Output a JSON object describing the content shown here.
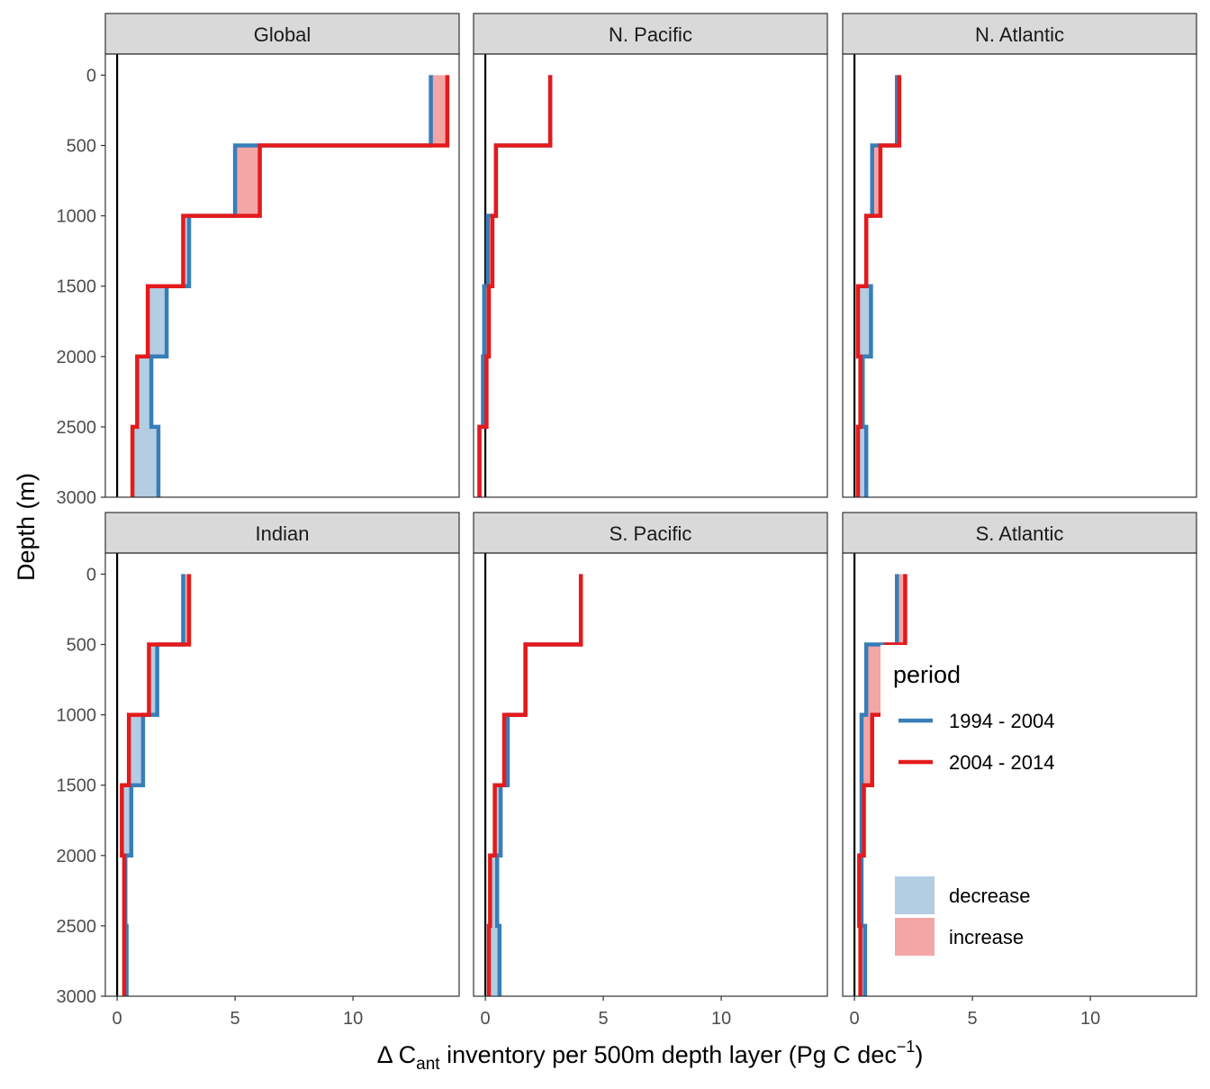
{
  "chart_data": {
    "type": "step",
    "xlabel": {
      "prefix": "Δ C",
      "subscript": "ant",
      "middle": " inventory per 500m depth layer (Pg C dec",
      "superscript": "−1",
      "suffix": ")"
    },
    "ylabel": "Depth (m)",
    "xlim": [
      -0.5,
      14.5
    ],
    "ylim": [
      3000,
      -150
    ],
    "xticks": [
      0,
      5,
      10
    ],
    "yticks": [
      0,
      500,
      1000,
      1500,
      2000,
      2500,
      3000
    ],
    "depth_layers": [
      [
        0,
        500
      ],
      [
        500,
        1000
      ],
      [
        1000,
        1500
      ],
      [
        1500,
        2000
      ],
      [
        2000,
        2500
      ],
      [
        2500,
        3000
      ]
    ],
    "series_colors": {
      "1994 - 2004": "#377eb8",
      "2004 - 2014": "#e41a1c"
    },
    "fill_colors": {
      "decrease": "#b3cde3",
      "increase": "#f4a5a6"
    },
    "legend": {
      "period_title": "period",
      "period_items": [
        "1994 - 2004",
        "2004 - 2014"
      ],
      "fill_items": [
        "decrease",
        "increase"
      ],
      "placement": "inside-bottom-right"
    },
    "panels": [
      {
        "name": "Global",
        "series": [
          {
            "name": "1994 - 2004",
            "values": [
              13.3,
              5.0,
              3.05,
              2.1,
              1.45,
              1.75
            ]
          },
          {
            "name": "2004 - 2014",
            "values": [
              14.0,
              6.05,
              2.8,
              1.3,
              0.85,
              0.65
            ]
          }
        ]
      },
      {
        "name": "N. Pacific",
        "series": [
          {
            "name": "1994 - 2004",
            "values": [
              2.75,
              0.45,
              0.1,
              -0.05,
              -0.1,
              -0.25
            ]
          },
          {
            "name": "2004 - 2014",
            "values": [
              2.75,
              0.45,
              0.3,
              0.15,
              0.05,
              -0.25
            ]
          }
        ]
      },
      {
        "name": "N. Atlantic",
        "series": [
          {
            "name": "1994 - 2004",
            "values": [
              1.8,
              0.75,
              0.5,
              0.7,
              0.35,
              0.5
            ]
          },
          {
            "name": "2004 - 2014",
            "values": [
              1.9,
              1.1,
              0.5,
              0.15,
              0.25,
              0.15
            ]
          }
        ]
      },
      {
        "name": "Indian",
        "series": [
          {
            "name": "1994 - 2004",
            "values": [
              2.8,
              1.7,
              1.1,
              0.6,
              0.35,
              0.4
            ]
          },
          {
            "name": "2004 - 2014",
            "values": [
              3.05,
              1.35,
              0.5,
              0.2,
              0.3,
              0.3
            ]
          }
        ]
      },
      {
        "name": "S. Pacific",
        "series": [
          {
            "name": "1994 - 2004",
            "values": [
              4.05,
              1.7,
              0.95,
              0.65,
              0.5,
              0.6
            ]
          },
          {
            "name": "2004 - 2014",
            "values": [
              4.05,
              1.7,
              0.8,
              0.4,
              0.2,
              0.15
            ]
          }
        ]
      },
      {
        "name": "S. Atlantic",
        "series": [
          {
            "name": "1994 - 2004",
            "values": [
              1.8,
              0.5,
              0.3,
              0.3,
              0.3,
              0.45
            ]
          },
          {
            "name": "2004 - 2014",
            "values": [
              2.15,
              1.35,
              0.75,
              0.4,
              0.2,
              0.25
            ]
          }
        ]
      }
    ]
  }
}
